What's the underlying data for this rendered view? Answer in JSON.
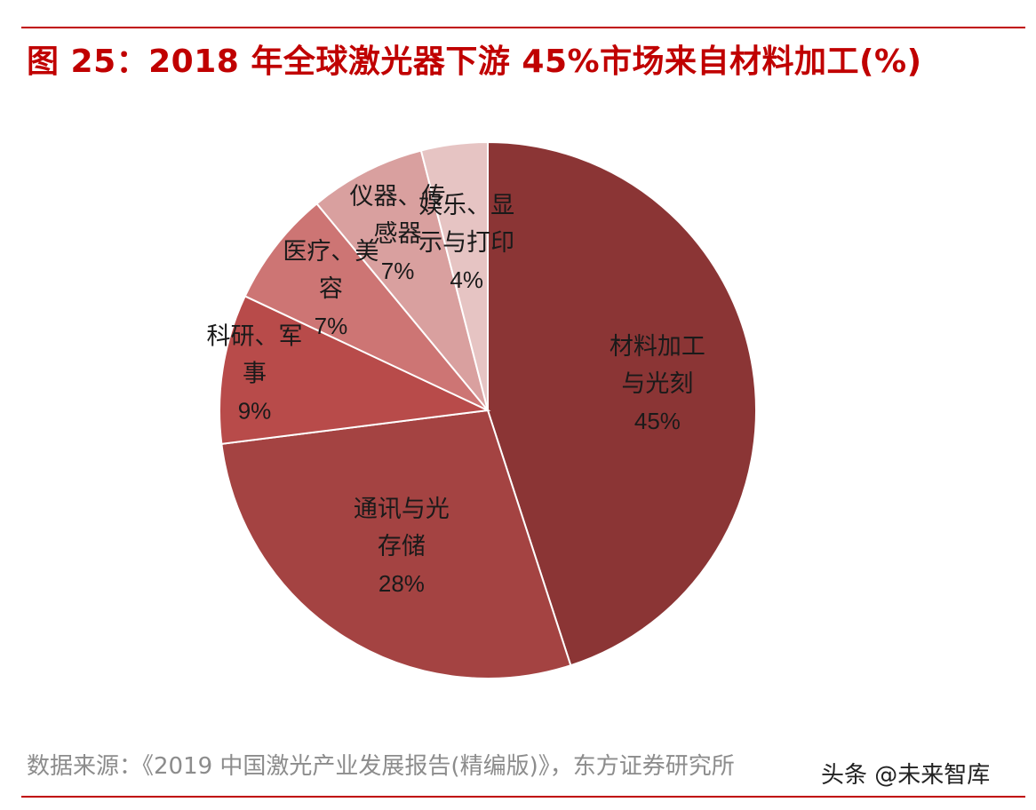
{
  "header": {
    "title": "图 25：2018 年全球激光器下游 45%市场来自材料加工(%)"
  },
  "chart_data": {
    "type": "pie",
    "slices": [
      {
        "label": [
          "材料加工",
          "与光刻"
        ],
        "value": 45,
        "pct_label": "45%",
        "color": "#8b3535"
      },
      {
        "label": [
          "通讯与光",
          "存储"
        ],
        "value": 28,
        "pct_label": "28%",
        "color": "#a44342"
      },
      {
        "label": [
          "科研、军",
          "事"
        ],
        "value": 9,
        "pct_label": "9%",
        "color": "#b84b4a"
      },
      {
        "label": [
          "医疗、美",
          "容"
        ],
        "value": 7,
        "pct_label": "7%",
        "color": "#cd7574"
      },
      {
        "label": [
          "仪器、传",
          "感器"
        ],
        "value": 7,
        "pct_label": "7%",
        "color": "#d9a09f"
      },
      {
        "label": [
          "娱乐、显",
          "示与打印"
        ],
        "value": 4,
        "pct_label": "4%",
        "color": "#e6c4c3"
      }
    ],
    "start_angle_deg": 0,
    "direction": "clockwise",
    "legend": "none"
  },
  "footer": {
    "source": "数据来源：《2019 中国激光产业发展报告(精编版)》，东方证券研究所",
    "watermark": "头条 @未来智库"
  }
}
